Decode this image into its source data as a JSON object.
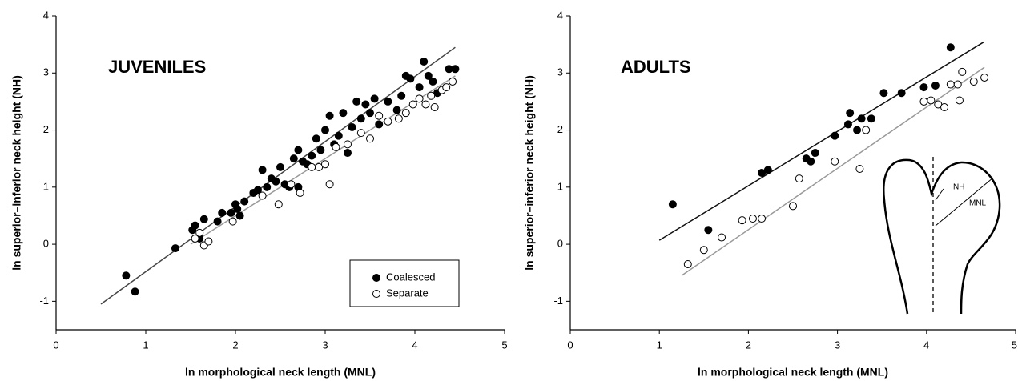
{
  "chart_data": [
    {
      "type": "scatter",
      "title": "JUVENILES",
      "x_label": "ln morphological neck length (MNL)",
      "y_label": "ln superior–inferior neck height (NH)",
      "xlim": [
        0,
        5
      ],
      "ylim": [
        -1.5,
        4
      ],
      "xticks": [
        0,
        1,
        2,
        3,
        4,
        5
      ],
      "yticks": [
        -1,
        0,
        1,
        2,
        3,
        4
      ],
      "legend": "lower right",
      "series": [
        {
          "name": "Coalesced",
          "color": "#000000",
          "x": [
            0.78,
            0.88,
            1.33,
            1.52,
            1.55,
            1.6,
            1.65,
            1.8,
            1.85,
            1.95,
            2.0,
            2.02,
            2.05,
            2.1,
            2.2,
            2.25,
            2.3,
            2.35,
            2.4,
            2.45,
            2.5,
            2.55,
            2.6,
            2.65,
            2.7,
            2.75,
            2.7,
            2.8,
            2.85,
            2.9,
            2.95,
            3.0,
            3.05,
            3.1,
            3.15,
            3.2,
            3.25,
            3.3,
            3.35,
            3.4,
            3.45,
            3.5,
            3.55,
            3.6,
            3.7,
            3.8,
            3.85,
            3.9,
            3.95,
            4.05,
            4.1,
            4.15,
            4.2,
            4.25,
            4.38,
            4.45
          ],
          "values": [
            -0.55,
            -0.83,
            -0.07,
            0.25,
            0.33,
            0.1,
            0.44,
            0.4,
            0.55,
            0.55,
            0.7,
            0.62,
            0.5,
            0.75,
            0.9,
            0.95,
            1.3,
            1.0,
            1.15,
            1.1,
            1.35,
            1.05,
            1.0,
            1.5,
            1.65,
            1.45,
            1.0,
            1.4,
            1.55,
            1.85,
            1.65,
            2.0,
            2.25,
            1.75,
            1.9,
            2.3,
            1.6,
            2.05,
            2.5,
            2.2,
            2.45,
            2.3,
            2.55,
            2.1,
            2.5,
            2.35,
            2.6,
            2.95,
            2.9,
            2.75,
            3.2,
            2.95,
            2.85,
            2.65,
            3.07,
            3.07
          ],
          "fit": {
            "color": "#444444",
            "x": [
              0.5,
              4.45
            ],
            "values": [
              -1.05,
              3.45
            ]
          }
        },
        {
          "name": "Separate",
          "color": "#ffffff",
          "x": [
            1.55,
            1.6,
            1.65,
            1.7,
            1.97,
            2.3,
            2.48,
            2.62,
            2.72,
            2.85,
            2.93,
            3.0,
            3.05,
            3.12,
            3.25,
            3.4,
            3.5,
            3.6,
            3.7,
            3.82,
            3.9,
            3.98,
            4.05,
            4.12,
            4.18,
            4.22,
            4.3,
            4.35,
            4.42
          ],
          "values": [
            0.1,
            0.2,
            -0.02,
            0.05,
            0.4,
            0.85,
            0.7,
            1.05,
            0.9,
            1.35,
            1.35,
            1.4,
            1.05,
            1.7,
            1.75,
            1.95,
            1.85,
            2.25,
            2.15,
            2.2,
            2.3,
            2.45,
            2.55,
            2.45,
            2.6,
            2.4,
            2.7,
            2.75,
            2.85
          ],
          "fit": {
            "color": "#999999",
            "x": [
              1.5,
              4.45
            ],
            "values": [
              0.0,
              2.95
            ]
          }
        }
      ]
    },
    {
      "type": "scatter",
      "title": "ADULTS",
      "x_label": "ln morphological neck length (MNL)",
      "y_label": "ln superior–inferior neck height (NH)",
      "xlim": [
        0,
        5
      ],
      "ylim": [
        -1.5,
        4
      ],
      "xticks": [
        0,
        1,
        2,
        3,
        4,
        5
      ],
      "yticks": [
        -1,
        0,
        1,
        2,
        3,
        4
      ],
      "annotations": [
        "NH",
        "MNL"
      ],
      "series": [
        {
          "color": "#000000",
          "x": [
            1.15,
            1.55,
            2.15,
            2.22,
            2.65,
            2.7,
            2.75,
            2.97,
            3.12,
            3.14,
            3.22,
            3.27,
            3.38,
            3.52,
            3.72,
            3.97,
            4.1,
            4.27
          ],
          "values": [
            0.7,
            0.25,
            1.25,
            1.3,
            1.5,
            1.45,
            1.6,
            1.9,
            2.1,
            2.3,
            2.0,
            2.2,
            2.2,
            2.65,
            2.65,
            2.75,
            2.78,
            3.45
          ],
          "fit": {
            "color": "#111111",
            "x": [
              1.0,
              4.65
            ],
            "values": [
              0.07,
              3.55
            ]
          }
        },
        {
          "color": "#ffffff",
          "x": [
            1.32,
            1.5,
            1.7,
            1.93,
            2.05,
            2.15,
            2.5,
            2.57,
            2.97,
            3.25,
            3.32,
            3.97,
            4.05,
            4.13,
            4.2,
            4.27,
            4.35,
            4.37,
            4.4,
            4.53,
            4.65
          ],
          "values": [
            -0.35,
            -0.1,
            0.12,
            0.42,
            0.45,
            0.45,
            0.67,
            1.15,
            1.45,
            1.32,
            2.0,
            2.5,
            2.52,
            2.45,
            2.4,
            2.8,
            2.8,
            2.52,
            3.02,
            2.85,
            2.92
          ],
          "fit": {
            "color": "#999999",
            "x": [
              1.25,
              4.65
            ],
            "values": [
              -0.55,
              3.1
            ]
          }
        }
      ]
    }
  ]
}
